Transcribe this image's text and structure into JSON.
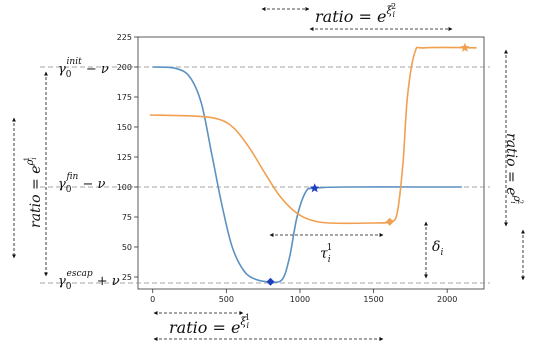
{
  "chart_data": {
    "type": "line",
    "xlim": [
      -100,
      2250
    ],
    "ylim": [
      15,
      225
    ],
    "x_ticks": [
      0,
      500,
      1000,
      1500,
      2000
    ],
    "y_ticks": [
      25,
      50,
      75,
      100,
      125,
      150,
      175,
      200,
      225
    ],
    "grid": false,
    "reference_lines": [
      200,
      100,
      20
    ],
    "series": [
      {
        "color": "#5b92c2",
        "marker_color": "#1f3fbf",
        "points": [
          [
            0,
            200
          ],
          [
            150,
            199
          ],
          [
            250,
            192
          ],
          [
            330,
            170
          ],
          [
            400,
            128
          ],
          [
            470,
            85
          ],
          [
            540,
            50
          ],
          [
            620,
            30
          ],
          [
            700,
            23
          ],
          [
            800,
            21
          ],
          [
            880,
            23
          ],
          [
            930,
            42
          ],
          [
            980,
            75
          ],
          [
            1040,
            96
          ],
          [
            1100,
            99
          ],
          [
            1300,
            100
          ],
          [
            1800,
            100
          ],
          [
            2100,
            100
          ]
        ],
        "markers": [
          [
            800,
            21
          ],
          [
            1100,
            99
          ]
        ]
      },
      {
        "color": "#f0a050",
        "marker_color": "#f0a050",
        "points": [
          [
            -20,
            160
          ],
          [
            300,
            159
          ],
          [
            460,
            156
          ],
          [
            560,
            148
          ],
          [
            660,
            132
          ],
          [
            760,
            112
          ],
          [
            860,
            93
          ],
          [
            960,
            80
          ],
          [
            1060,
            73
          ],
          [
            1200,
            70
          ],
          [
            1500,
            70
          ],
          [
            1610,
            71
          ],
          [
            1660,
            78
          ],
          [
            1700,
            120
          ],
          [
            1730,
            175
          ],
          [
            1780,
            212
          ],
          [
            1850,
            216
          ],
          [
            2200,
            216
          ]
        ],
        "markers": [
          [
            1610,
            71
          ],
          [
            2120,
            216
          ]
        ]
      }
    ],
    "annotations": {
      "y_label_top_base": "γ",
      "y_label_top_sub": "0",
      "y_label_top_sup": "init",
      "y_label_top_tail": " − ν",
      "y_label_mid_base": "γ",
      "y_label_mid_sub": "0",
      "y_label_mid_sup": "fin",
      "y_label_mid_tail": " − ν",
      "y_label_bot_base": "γ",
      "y_label_bot_sub": "0",
      "y_label_bot_sup": "escap",
      "y_label_bot_tail": " + ν",
      "ratio_left_text": "ratio = e",
      "ratio_left_exp": "ρ",
      "ratio_left_exp_sub": "i",
      "ratio_left_exp_sup": "1",
      "ratio_top_text": "ratio = e",
      "ratio_top_exp": "ξ",
      "ratio_top_exp_sub": "i",
      "ratio_top_exp_sup": "2",
      "ratio_bottom_text": "ratio = e",
      "ratio_bottom_exp": "ξ",
      "ratio_bottom_exp_sub": "i",
      "ratio_bottom_exp_sup": "1",
      "ratio_right_text": "ratio = e",
      "ratio_right_exp": "ρ",
      "ratio_right_exp_sub": "i",
      "ratio_right_exp_sup": "2",
      "tau_base": "τ",
      "tau_sub": "i",
      "tau_sup": "1",
      "delta_base": "δ",
      "delta_sub": "i"
    }
  }
}
